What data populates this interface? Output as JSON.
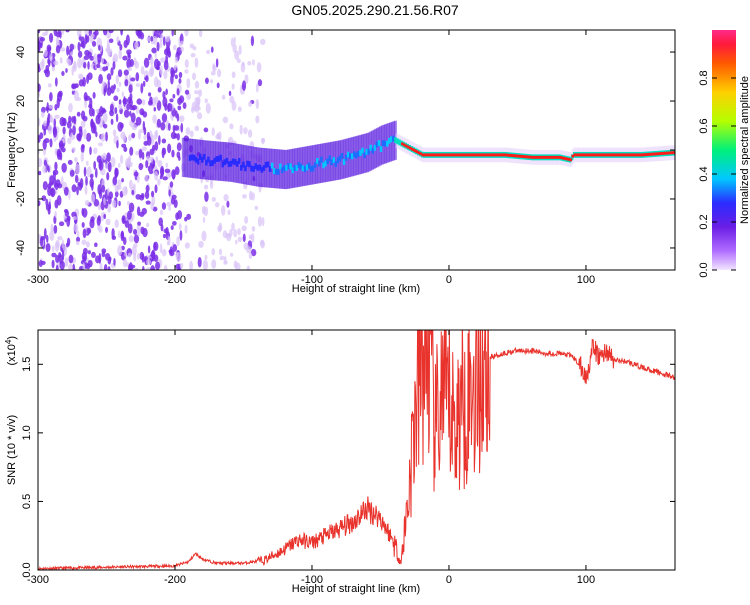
{
  "title": "GN05.2025.290.21.56.R07",
  "colors": {
    "axis": "#000000",
    "snr_line": "#e8322b",
    "spectrum_low": "#ead9fb",
    "spectrum_mid": "#6a1ee6",
    "spectrum_peak": "#ff1a1a"
  },
  "chart_data": [
    {
      "type": "heatmap",
      "name": "spectrogram",
      "xlabel": "Height of straight line (km)",
      "ylabel": "Frequency (Hz)",
      "xlim": [
        -300,
        165
      ],
      "ylim": [
        -49,
        49
      ],
      "xticks": [
        -300,
        -200,
        -100,
        0,
        100
      ],
      "yticks": [
        -40,
        -20,
        0,
        20,
        40
      ],
      "colorbar": {
        "label": "Normalized spectral amplitude",
        "range": [
          0,
          1
        ],
        "ticks": [
          "0.0",
          "0.2",
          "0.4",
          "0.6",
          "0.8"
        ],
        "colormap": "rainbow"
      },
      "ridge": {
        "x": [
          -195,
          -180,
          -160,
          -140,
          -120,
          -100,
          -80,
          -60,
          -50,
          -40,
          -30,
          -20,
          -10,
          0,
          20,
          40,
          60,
          80,
          88,
          90,
          100,
          120,
          140,
          165
        ],
        "y": [
          -3,
          -4,
          -5,
          -7,
          -8,
          -6,
          -4,
          -1,
          2,
          4,
          1,
          -2,
          -2,
          -2,
          -2,
          -2,
          -3,
          -3,
          -4,
          -2,
          -2,
          -2,
          -2,
          -1
        ]
      },
      "noise_region_xlim": [
        -300,
        -135
      ]
    },
    {
      "type": "line",
      "name": "snr",
      "xlabel": "Height of straight line (km)",
      "ylabel": "SNR (10 * v/v)",
      "scale_note": "(x10^4)",
      "scale_base": "(x10",
      "scale_exp": "4",
      "xlim": [
        -300,
        165
      ],
      "ylim": [
        0,
        1.75
      ],
      "xticks": [
        -300,
        -200,
        -100,
        0,
        100
      ],
      "yticks": [
        "0.0",
        "0.5",
        "1.0",
        "1.5"
      ],
      "y_unit_multiplier": 10000,
      "series": [
        {
          "x": [
            -300,
            -250,
            -200,
            -190,
            -185,
            -180,
            -170,
            -150,
            -135,
            -120,
            -110,
            -100,
            -90,
            -80,
            -70,
            -60,
            -50,
            -40,
            -35,
            -30,
            -25,
            -20,
            -15,
            -10,
            -5,
            0,
            5,
            10,
            20,
            30,
            40,
            50,
            60,
            70,
            80,
            90,
            95,
            100,
            105,
            110,
            115,
            120,
            130,
            140,
            150,
            165
          ],
          "values": [
            0.01,
            0.02,
            0.03,
            0.06,
            0.12,
            0.08,
            0.05,
            0.05,
            0.07,
            0.15,
            0.22,
            0.2,
            0.25,
            0.3,
            0.35,
            0.45,
            0.38,
            0.2,
            0.05,
            0.5,
            1.1,
            1.5,
            1.6,
            1.0,
            1.3,
            1.2,
            1.05,
            1.25,
            1.4,
            1.55,
            1.58,
            1.6,
            1.6,
            1.58,
            1.58,
            1.56,
            1.5,
            1.4,
            1.62,
            1.55,
            1.6,
            1.53,
            1.52,
            1.48,
            1.45,
            1.4
          ]
        }
      ]
    }
  ]
}
